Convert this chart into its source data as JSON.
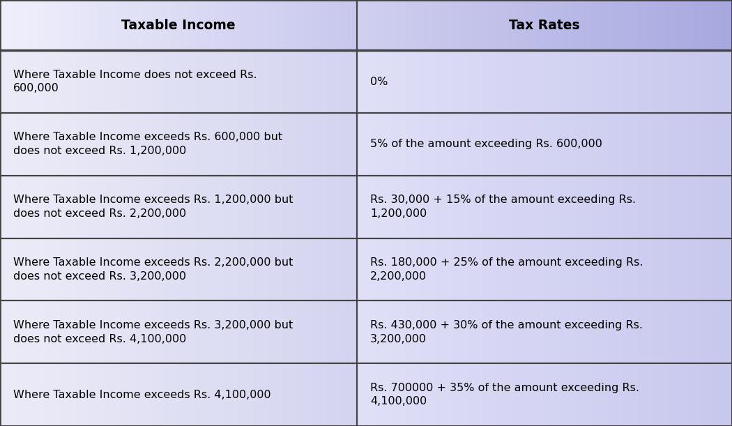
{
  "header": [
    "Taxable Income",
    "Tax Rates"
  ],
  "rows": [
    [
      "Where Taxable Income does not exceed Rs.\n600,000",
      "0%"
    ],
    [
      "Where Taxable Income exceeds Rs. 600,000 but\ndoes not exceed Rs. 1,200,000",
      "5% of the amount exceeding Rs. 600,000"
    ],
    [
      "Where Taxable Income exceeds Rs. 1,200,000 but\ndoes not exceed Rs. 2,200,000",
      "Rs. 30,000 + 15% of the amount exceeding Rs.\n1,200,000"
    ],
    [
      "Where Taxable Income exceeds Rs. 2,200,000 but\ndoes not exceed Rs. 3,200,000",
      "Rs. 180,000 + 25% of the amount exceeding Rs.\n2,200,000"
    ],
    [
      "Where Taxable Income exceeds Rs. 3,200,000 but\ndoes not exceed Rs. 4,100,000",
      "Rs. 430,000 + 30% of the amount exceeding Rs.\n3,200,000"
    ],
    [
      "Where Taxable Income exceeds Rs. 4,100,000",
      "Rs. 700000 + 35% of the amount exceeding Rs.\n4,100,000"
    ]
  ],
  "header_bg_left": "#eeeef8",
  "header_bg_right": "#c0c0e8",
  "row_bg_left": "#e8e8f8",
  "row_bg_right": "#c8c8f0",
  "border_color": "#444444",
  "header_text_color": "#000000",
  "row_text_color": "#000000",
  "col_split": 0.488,
  "fig_bg": "#dcdcf0",
  "header_fontsize": 13.5,
  "row_fontsize": 11.5,
  "header_bold": true,
  "outer_border_lw": 2.0,
  "inner_border_lw": 1.5
}
